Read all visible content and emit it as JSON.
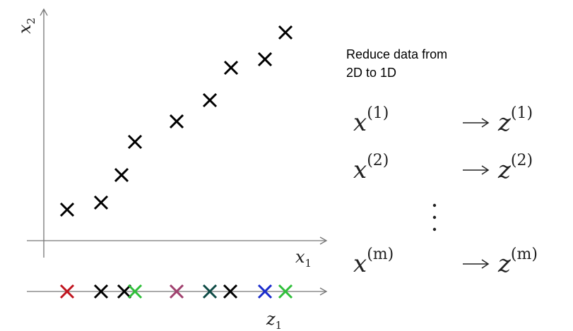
{
  "axes": {
    "top_y": {
      "base": "x",
      "sub": "2"
    },
    "top_x": {
      "base": "x",
      "sub": "1"
    },
    "bottom_x": {
      "base": "z",
      "sub": "1"
    }
  },
  "caption": {
    "lines": [
      "Reduce data from",
      "2D to 1D"
    ]
  },
  "mapping": [
    {
      "from": {
        "base": "x",
        "sup": "(1)"
      },
      "to": {
        "base": "z",
        "sup": "(1)"
      }
    },
    {
      "from": {
        "base": "x",
        "sup": "(2)"
      },
      "to": {
        "base": "z",
        "sup": "(2)"
      }
    },
    {
      "from": {
        "base": "x",
        "sup": "(m)"
      },
      "to": {
        "base": "z",
        "sup": "(m)"
      }
    }
  ]
}
